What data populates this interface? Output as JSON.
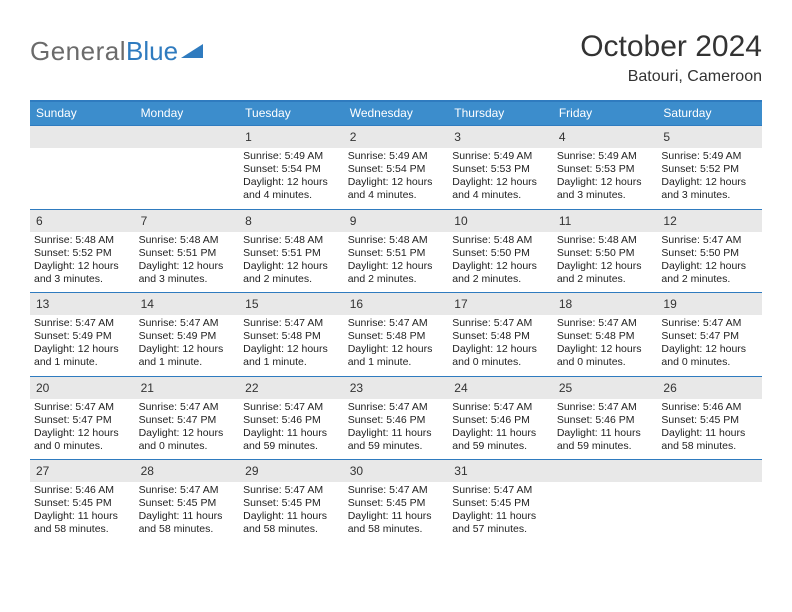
{
  "brand": {
    "part1": "General",
    "part2": "Blue"
  },
  "title": "October 2024",
  "location": "Batouri, Cameroon",
  "colors": {
    "header_bg": "#3c8dcc",
    "border": "#2f7bbf",
    "daynum_bg": "#e8e8e8",
    "text": "#222222",
    "page_bg": "#ffffff"
  },
  "days_of_week": [
    "Sunday",
    "Monday",
    "Tuesday",
    "Wednesday",
    "Thursday",
    "Friday",
    "Saturday"
  ],
  "weeks": [
    [
      null,
      null,
      {
        "n": "1",
        "sr": "5:49 AM",
        "ss": "5:54 PM",
        "dl": "12 hours and 4 minutes."
      },
      {
        "n": "2",
        "sr": "5:49 AM",
        "ss": "5:54 PM",
        "dl": "12 hours and 4 minutes."
      },
      {
        "n": "3",
        "sr": "5:49 AM",
        "ss": "5:53 PM",
        "dl": "12 hours and 4 minutes."
      },
      {
        "n": "4",
        "sr": "5:49 AM",
        "ss": "5:53 PM",
        "dl": "12 hours and 3 minutes."
      },
      {
        "n": "5",
        "sr": "5:49 AM",
        "ss": "5:52 PM",
        "dl": "12 hours and 3 minutes."
      }
    ],
    [
      {
        "n": "6",
        "sr": "5:48 AM",
        "ss": "5:52 PM",
        "dl": "12 hours and 3 minutes."
      },
      {
        "n": "7",
        "sr": "5:48 AM",
        "ss": "5:51 PM",
        "dl": "12 hours and 3 minutes."
      },
      {
        "n": "8",
        "sr": "5:48 AM",
        "ss": "5:51 PM",
        "dl": "12 hours and 2 minutes."
      },
      {
        "n": "9",
        "sr": "5:48 AM",
        "ss": "5:51 PM",
        "dl": "12 hours and 2 minutes."
      },
      {
        "n": "10",
        "sr": "5:48 AM",
        "ss": "5:50 PM",
        "dl": "12 hours and 2 minutes."
      },
      {
        "n": "11",
        "sr": "5:48 AM",
        "ss": "5:50 PM",
        "dl": "12 hours and 2 minutes."
      },
      {
        "n": "12",
        "sr": "5:47 AM",
        "ss": "5:50 PM",
        "dl": "12 hours and 2 minutes."
      }
    ],
    [
      {
        "n": "13",
        "sr": "5:47 AM",
        "ss": "5:49 PM",
        "dl": "12 hours and 1 minute."
      },
      {
        "n": "14",
        "sr": "5:47 AM",
        "ss": "5:49 PM",
        "dl": "12 hours and 1 minute."
      },
      {
        "n": "15",
        "sr": "5:47 AM",
        "ss": "5:48 PM",
        "dl": "12 hours and 1 minute."
      },
      {
        "n": "16",
        "sr": "5:47 AM",
        "ss": "5:48 PM",
        "dl": "12 hours and 1 minute."
      },
      {
        "n": "17",
        "sr": "5:47 AM",
        "ss": "5:48 PM",
        "dl": "12 hours and 0 minutes."
      },
      {
        "n": "18",
        "sr": "5:47 AM",
        "ss": "5:48 PM",
        "dl": "12 hours and 0 minutes."
      },
      {
        "n": "19",
        "sr": "5:47 AM",
        "ss": "5:47 PM",
        "dl": "12 hours and 0 minutes."
      }
    ],
    [
      {
        "n": "20",
        "sr": "5:47 AM",
        "ss": "5:47 PM",
        "dl": "12 hours and 0 minutes."
      },
      {
        "n": "21",
        "sr": "5:47 AM",
        "ss": "5:47 PM",
        "dl": "12 hours and 0 minutes."
      },
      {
        "n": "22",
        "sr": "5:47 AM",
        "ss": "5:46 PM",
        "dl": "11 hours and 59 minutes."
      },
      {
        "n": "23",
        "sr": "5:47 AM",
        "ss": "5:46 PM",
        "dl": "11 hours and 59 minutes."
      },
      {
        "n": "24",
        "sr": "5:47 AM",
        "ss": "5:46 PM",
        "dl": "11 hours and 59 minutes."
      },
      {
        "n": "25",
        "sr": "5:47 AM",
        "ss": "5:46 PM",
        "dl": "11 hours and 59 minutes."
      },
      {
        "n": "26",
        "sr": "5:46 AM",
        "ss": "5:45 PM",
        "dl": "11 hours and 58 minutes."
      }
    ],
    [
      {
        "n": "27",
        "sr": "5:46 AM",
        "ss": "5:45 PM",
        "dl": "11 hours and 58 minutes."
      },
      {
        "n": "28",
        "sr": "5:47 AM",
        "ss": "5:45 PM",
        "dl": "11 hours and 58 minutes."
      },
      {
        "n": "29",
        "sr": "5:47 AM",
        "ss": "5:45 PM",
        "dl": "11 hours and 58 minutes."
      },
      {
        "n": "30",
        "sr": "5:47 AM",
        "ss": "5:45 PM",
        "dl": "11 hours and 58 minutes."
      },
      {
        "n": "31",
        "sr": "5:47 AM",
        "ss": "5:45 PM",
        "dl": "11 hours and 57 minutes."
      },
      null,
      null
    ]
  ],
  "labels": {
    "sunrise": "Sunrise: ",
    "sunset": "Sunset: ",
    "daylight": "Daylight: "
  }
}
